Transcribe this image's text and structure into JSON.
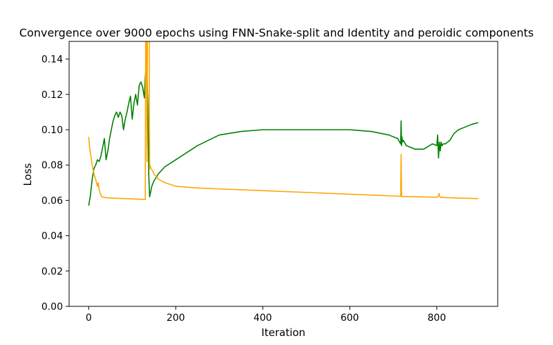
{
  "chart_data": {
    "type": "line",
    "title": "Convergence over 9000 epochs using FNN-Snake-split and Identity and peroidic components",
    "xlabel": "Iteration",
    "ylabel": "Loss",
    "xlim": [
      -45,
      940
    ],
    "ylim": [
      0,
      0.15
    ],
    "xticks": [
      0,
      200,
      400,
      600,
      800
    ],
    "yticks": [
      0.0,
      0.02,
      0.04,
      0.06,
      0.08,
      0.1,
      0.12,
      0.14
    ],
    "xtick_labels": [
      "0",
      "200",
      "400",
      "600",
      "800"
    ],
    "ytick_labels": [
      "0.00",
      "0.02",
      "0.04",
      "0.06",
      "0.08",
      "0.10",
      "0.12",
      "0.14"
    ],
    "grid": false,
    "legend": "none",
    "series": [
      {
        "color": "#008000",
        "x": [
          0,
          4,
          8,
          12,
          16,
          20,
          24,
          28,
          32,
          36,
          40,
          44,
          48,
          52,
          56,
          60,
          64,
          68,
          72,
          76,
          80,
          84,
          88,
          92,
          96,
          100,
          104,
          108,
          112,
          116,
          120,
          124,
          128,
          130,
          132,
          134,
          136,
          138,
          140,
          145,
          150,
          160,
          175,
          200,
          250,
          300,
          350,
          400,
          450,
          500,
          550,
          600,
          650,
          690,
          710,
          717,
          718,
          719,
          720,
          721,
          723,
          730,
          750,
          770,
          790,
          800,
          802,
          804,
          806,
          808,
          810,
          812,
          815,
          820,
          830,
          840,
          850,
          860,
          880,
          895
        ],
        "y": [
          0.057,
          0.063,
          0.072,
          0.078,
          0.08,
          0.083,
          0.082,
          0.085,
          0.09,
          0.095,
          0.083,
          0.088,
          0.095,
          0.1,
          0.105,
          0.108,
          0.11,
          0.107,
          0.11,
          0.108,
          0.1,
          0.106,
          0.11,
          0.115,
          0.119,
          0.106,
          0.115,
          0.12,
          0.114,
          0.125,
          0.127,
          0.124,
          0.118,
          0.13,
          0.135,
          0.13,
          0.115,
          0.075,
          0.062,
          0.068,
          0.071,
          0.075,
          0.079,
          0.083,
          0.091,
          0.097,
          0.099,
          0.1,
          0.1,
          0.1,
          0.1,
          0.1,
          0.099,
          0.097,
          0.095,
          0.092,
          0.105,
          0.091,
          0.096,
          0.093,
          0.094,
          0.091,
          0.089,
          0.089,
          0.092,
          0.091,
          0.097,
          0.084,
          0.093,
          0.088,
          0.093,
          0.091,
          0.092,
          0.092,
          0.094,
          0.098,
          0.1,
          0.101,
          0.103,
          0.104
        ]
      },
      {
        "color": "#FFA500",
        "x": [
          0,
          2,
          5,
          8,
          12,
          16,
          20,
          22,
          24,
          26,
          30,
          40,
          60,
          80,
          100,
          120,
          128,
          130,
          131,
          132,
          133,
          134,
          135,
          136,
          137,
          138,
          139,
          140,
          141,
          143,
          146,
          150,
          160,
          175,
          200,
          250,
          300,
          400,
          500,
          600,
          700,
          717,
          718,
          719,
          720,
          725,
          760,
          800,
          804,
          805,
          806,
          808,
          850,
          895
        ],
        "y": [
          0.096,
          0.09,
          0.085,
          0.08,
          0.075,
          0.072,
          0.068,
          0.07,
          0.066,
          0.064,
          0.062,
          0.0615,
          0.0612,
          0.061,
          0.0608,
          0.0606,
          0.0605,
          0.0605,
          0.155,
          0.155,
          0.155,
          0.082,
          0.155,
          0.155,
          0.155,
          0.155,
          0.155,
          0.078,
          0.08,
          0.078,
          0.077,
          0.075,
          0.072,
          0.07,
          0.068,
          0.067,
          0.0665,
          0.0655,
          0.0645,
          0.0635,
          0.0625,
          0.0623,
          0.086,
          0.0623,
          0.0622,
          0.0622,
          0.062,
          0.0618,
          0.0625,
          0.064,
          0.0625,
          0.0617,
          0.0613,
          0.061
        ]
      }
    ]
  }
}
